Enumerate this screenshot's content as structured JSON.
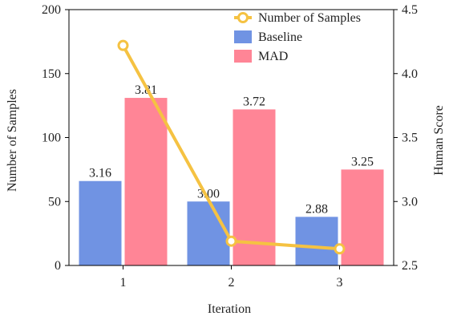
{
  "chart_data": {
    "type": "bar",
    "xlabel": "Iteration",
    "ylabel_left": "Number of Samples",
    "ylabel_right": "Human Score",
    "categories": [
      "1",
      "2",
      "3"
    ],
    "ylim_left": [
      0,
      200
    ],
    "ylim_right": [
      2.5,
      4.5
    ],
    "yticks_left": [
      "0",
      "50",
      "100",
      "150",
      "200"
    ],
    "yticks_right": [
      "2.5",
      "3.0",
      "3.5",
      "4.0",
      "4.5"
    ],
    "grid": false,
    "legend_position": "top-right",
    "series": [
      {
        "name": "Baseline",
        "axis": "right",
        "kind": "bar",
        "color": "#7093e3",
        "values": [
          3.16,
          3.0,
          2.88
        ],
        "labels": [
          "3.16",
          "3.00",
          "2.88"
        ]
      },
      {
        "name": "MAD",
        "axis": "right",
        "kind": "bar",
        "color": "#ff8596",
        "values": [
          3.81,
          3.72,
          3.25
        ],
        "labels": [
          "3.81",
          "3.72",
          "3.25"
        ]
      },
      {
        "name": "Number of Samples",
        "axis": "left",
        "kind": "line",
        "color": "#f5c242",
        "values": [
          172,
          19,
          13
        ]
      }
    ]
  }
}
